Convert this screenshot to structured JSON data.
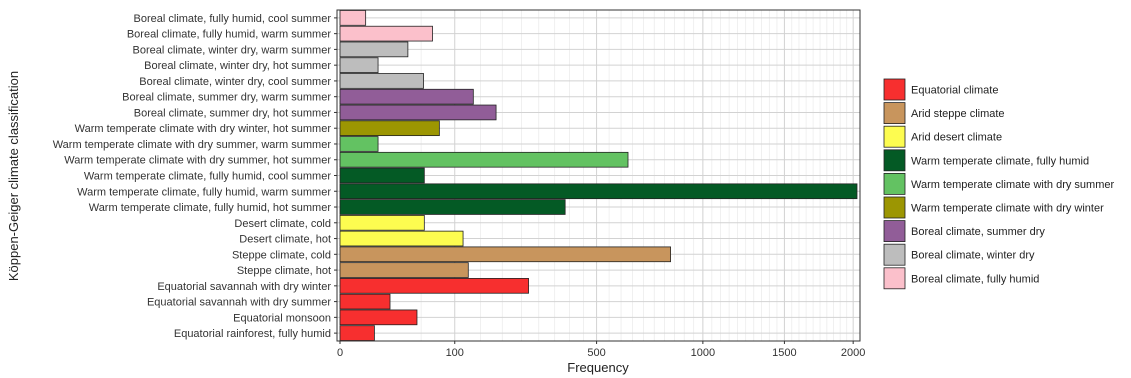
{
  "chart_data": {
    "type": "bar",
    "orientation": "horizontal",
    "xlabel": "Frequency",
    "ylabel": "Köppen-Geiger climate classification",
    "xscale": "sqrt",
    "xlim": [
      0,
      2030
    ],
    "x_ticks": [
      0,
      100,
      500,
      1000,
      1500,
      2000
    ],
    "grid": true,
    "legend_position": "right",
    "categories": [
      "Boreal climate, fully humid,  cool summer",
      "Boreal climate, fully humid,  warm summer",
      "Boreal climate, winter dry,  warm summer",
      "Boreal climate, winter dry,  hot summer",
      "Boreal climate, winter dry,  cool summer",
      "Boreal climate, summer dry, warm summer",
      "Boreal climate, summer dry,  hot summer",
      "Warm temperate climate with dry winter, hot summer",
      "Warm temperate climate with dry summer, warm summer",
      "Warm temperate climate with dry summer,  hot summer",
      "Warm temperate climate, fully humid,  cool summer",
      "Warm temperate climate, fully humid, warm summer",
      "Warm temperate climate, fully humid,  hot summer",
      "Desert climate, cold",
      "Desert climate, hot",
      "Steppe climate, cold",
      "Steppe climate, hot",
      "Equatorial savannah with dry winter",
      "Equatorial savannah with dry summer",
      "Equatorial monsoon",
      "Equatorial rainforest, fully humid"
    ],
    "values": [
      5,
      65,
      35,
      11,
      53,
      135,
      185,
      75,
      11,
      630,
      54,
      2030,
      385,
      54,
      115,
      830,
      125,
      270,
      19,
      45,
      9
    ],
    "group_index": [
      8,
      8,
      7,
      7,
      7,
      6,
      6,
      5,
      4,
      4,
      3,
      3,
      3,
      2,
      2,
      1,
      1,
      0,
      0,
      0,
      0
    ],
    "legend": [
      {
        "label": "Equatorial climate",
        "color": "#f72f2f"
      },
      {
        "label": "Arid steppe climate",
        "color": "#c8955d"
      },
      {
        "label": "Arid desert climate",
        "color": "#fdfc50"
      },
      {
        "label": "Warm temperate climate, fully humid",
        "color": "#045a25"
      },
      {
        "label": "Warm temperate climate with dry summer",
        "color": "#63c262"
      },
      {
        "label": "Warm temperate climate with dry winter",
        "color": "#9c9602"
      },
      {
        "label": "Boreal climate, summer dry",
        "color": "#915d98"
      },
      {
        "label": "Boreal climate, winter dry",
        "color": "#bdbdbd"
      },
      {
        "label": "Boreal climate, fully humid",
        "color": "#fbc0cb"
      }
    ]
  }
}
